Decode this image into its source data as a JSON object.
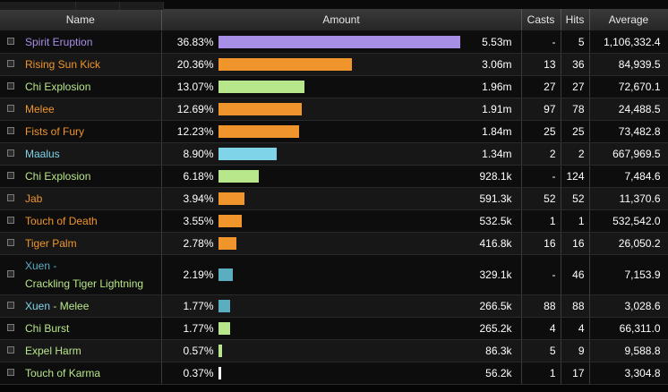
{
  "columns": {
    "name": "Name",
    "amount": "Amount",
    "casts": "Casts",
    "hits": "Hits",
    "average": "Average"
  },
  "colors": {
    "purple": "#a78fe6",
    "orange": "#f0952b",
    "green": "#b8e68a",
    "cyan": "#7fd4e8",
    "teal": "#5aaec0",
    "white": "#ffffff"
  },
  "rows": [
    {
      "name": "Spirit Eruption",
      "color": "#a78fe6",
      "pct": "36.83%",
      "amount": "5.53m",
      "casts": "-",
      "hits": "5",
      "average": "1,106,332.4",
      "fraction": 1.0
    },
    {
      "name": "Rising Sun Kick",
      "color": "#f0952b",
      "pct": "20.36%",
      "amount": "3.06m",
      "casts": "13",
      "hits": "36",
      "average": "84,939.5",
      "fraction": 0.553
    },
    {
      "name": "Chi Explosion",
      "color": "#b8e68a",
      "pct": "13.07%",
      "amount": "1.96m",
      "casts": "27",
      "hits": "27",
      "average": "72,670.1",
      "fraction": 0.355
    },
    {
      "name": "Melee",
      "color": "#f0952b",
      "pct": "12.69%",
      "amount": "1.91m",
      "casts": "97",
      "hits": "78",
      "average": "24,488.5",
      "fraction": 0.345
    },
    {
      "name": "Fists of Fury",
      "color": "#f0952b",
      "pct": "12.23%",
      "amount": "1.84m",
      "casts": "25",
      "hits": "25",
      "average": "73,482.8",
      "fraction": 0.332
    },
    {
      "name": "Maalus",
      "color": "#7fd4e8",
      "pct": "8.90%",
      "amount": "1.34m",
      "casts": "2",
      "hits": "2",
      "average": "667,969.5",
      "fraction": 0.242
    },
    {
      "name": "Chi Explosion",
      "color": "#b8e68a",
      "pct": "6.18%",
      "amount": "928.1k",
      "casts": "-",
      "hits": "124",
      "average": "7,484.6",
      "fraction": 0.168
    },
    {
      "name": "Jab",
      "color": "#f0952b",
      "pct": "3.94%",
      "amount": "591.3k",
      "casts": "52",
      "hits": "52",
      "average": "11,370.6",
      "fraction": 0.107
    },
    {
      "name": "Touch of Death",
      "color": "#f0952b",
      "pct": "3.55%",
      "amount": "532.5k",
      "casts": "1",
      "hits": "1",
      "average": "532,542.0",
      "fraction": 0.096
    },
    {
      "name": "Tiger Palm",
      "color": "#f0952b",
      "pct": "2.78%",
      "amount": "416.8k",
      "casts": "16",
      "hits": "16",
      "average": "26,050.2",
      "fraction": 0.075
    },
    {
      "name_line1": "Xuen -",
      "name_line2": "Crackling Tiger Lightning",
      "color": "#5aaec0",
      "color2": "#b8e68a",
      "pct": "2.19%",
      "amount": "329.1k",
      "casts": "-",
      "hits": "46",
      "average": "7,153.9",
      "fraction": 0.059
    },
    {
      "name_a": "Xuen",
      "name_b": " - Melee",
      "color": "#7fd4e8",
      "color2": "#b8e68a",
      "pct": "1.77%",
      "amount": "266.5k",
      "casts": "88",
      "hits": "88",
      "average": "3,028.6",
      "fraction": 0.048
    },
    {
      "name": "Chi Burst",
      "color": "#b8e68a",
      "pct": "1.77%",
      "amount": "265.2k",
      "casts": "4",
      "hits": "4",
      "average": "66,311.0",
      "fraction": 0.048
    },
    {
      "name": "Expel Harm",
      "color": "#b8e68a",
      "pct": "0.57%",
      "amount": "86.3k",
      "casts": "5",
      "hits": "9",
      "average": "9,588.8",
      "fraction": 0.015
    },
    {
      "name": "Touch of Karma",
      "color": "#b8e68a",
      "pct": "0.37%",
      "amount": "56.2k",
      "casts": "1",
      "hits": "17",
      "average": "3,304.8",
      "fraction": 0.01,
      "bar_color": "#ffffff"
    }
  ]
}
